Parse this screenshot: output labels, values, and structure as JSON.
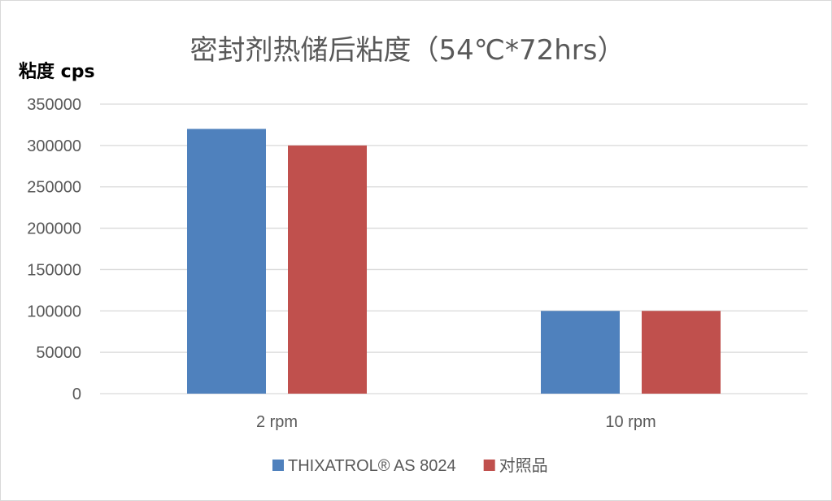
{
  "chart_data": {
    "type": "bar",
    "title": "密封剂热储后粘度（54℃*72hrs）",
    "xlabel": "",
    "ylabel": "粘度 cps",
    "categories": [
      "2 rpm",
      "10 rpm"
    ],
    "series": [
      {
        "name": "THIXATROL® AS 8024",
        "color": "#4f81bd",
        "values": [
          320000,
          100000
        ]
      },
      {
        "name": "对照品",
        "color": "#c0504d",
        "values": [
          300000,
          100000
        ]
      }
    ],
    "ylim": [
      0,
      350000
    ],
    "yticks": [
      0,
      50000,
      100000,
      150000,
      200000,
      250000,
      300000,
      350000
    ],
    "grid": true,
    "legend_position": "bottom"
  },
  "colors": {
    "grid": "#d9d9d9",
    "text": "#595959",
    "title": "#595959",
    "ylabel": "#000000"
  }
}
